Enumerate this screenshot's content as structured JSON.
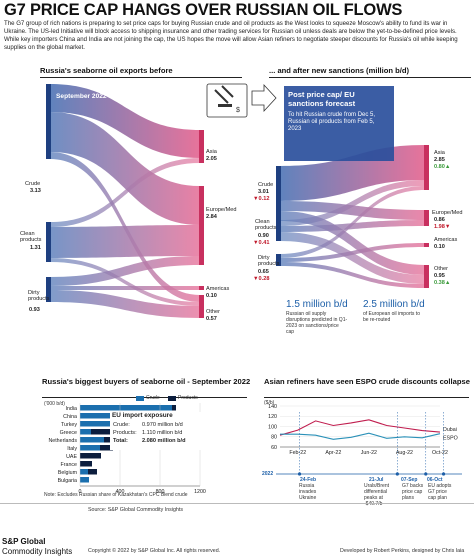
{
  "header": {
    "title": "G7 PRICE CAP HANGS OVER RUSSIAN OIL FLOWS",
    "intro": "The G7 group of rich nations is preparing to set price caps for buying Russian crude and oil products as the West looks to squeeze Moscow's ability to fund its war in Ukraine. The US-led Initiative will block access to shipping insurance and other trading services for Russian oil unless deals are below the yet-to-be-defined price levels. While key importers China and India are not joining the cap, the US hopes the move will allow Asian refiners to negotiate steeper discounts for Russia's oil while keeping supplies on the global market."
  },
  "sankey": {
    "heading_left": "Russia's seaborne oil exports before",
    "heading_right": "... and after new sanctions (million b/d)",
    "before_period": "September 2022",
    "after_title": "Post price cap/ EU sanctions forecast",
    "after_text": "To hit Russian crude from Dec 5, Russian oil products from Feb 5, 2023",
    "before_sources": [
      {
        "label": "Crude",
        "value": "3.13"
      },
      {
        "label": "Clean products",
        "value": "1.31"
      },
      {
        "label": "Dirty products",
        "value": "0.93"
      }
    ],
    "before_destinations": [
      {
        "label": "Asia",
        "value": "2.05"
      },
      {
        "label": "Europe/Med",
        "value": "2.84"
      },
      {
        "label": "Americas",
        "value": "0.10"
      },
      {
        "label": "Other",
        "value": "0.57"
      }
    ],
    "after_sources": [
      {
        "label": "Crude",
        "value": "3.01",
        "change": "0.12"
      },
      {
        "label": "Clean products",
        "value": "0.90",
        "change": "0.41"
      },
      {
        "label": "Dirty products",
        "value": "0.65",
        "change": "0.28"
      }
    ],
    "after_destinations": [
      {
        "label": "Asia",
        "value": "2.85",
        "change": "0.80"
      },
      {
        "label": "Europe/Med",
        "value": "0.86",
        "change": "1.98"
      },
      {
        "label": "Americas",
        "value": "0.10",
        "change": ""
      },
      {
        "label": "Other",
        "value": "0.95",
        "change": "0.38"
      }
    ],
    "stat1_value": "1.5 million b/d",
    "stat1_text": "Russian oil supply disruptions predicted in Q1-2023 on sanctions/price cap",
    "stat2_value": "2.5 million b/d",
    "stat2_text": "of European oil imports to be re-routed",
    "colors": {
      "blue": "#2a5aa8",
      "pink": "#e0457a",
      "green": "#3a9a3a",
      "red": "#c0182a"
    }
  },
  "buyers": {
    "heading": "Russia's biggest buyers of seaborne oil - September 2022",
    "unit": "('000 b/d)",
    "legend": [
      "Crude",
      "Products"
    ],
    "eu_title": "EU import exposure",
    "eu_rows": [
      {
        "label": "Crude:",
        "value": "0.970 million b/d"
      },
      {
        "label": "Products:",
        "value": "1.110 million b/d"
      },
      {
        "label": "Total:",
        "value": "2.080 million b/d"
      }
    ],
    "note": "Note: Excludes Russian share of Kazakhstan's CPC Blend crude"
  },
  "espo": {
    "heading": "Asian refiners have seen ESPO crude discounts collapse",
    "unit": "($/b)",
    "events": [
      {
        "date": "24-Feb",
        "text": "Russia invades Ukraine"
      },
      {
        "date": "21-Jul",
        "text": "Urals/Brent differential peaks at -$40.7/b"
      },
      {
        "date": "07-Sep",
        "text": "G7 backs price cap plans"
      },
      {
        "date": "06-Oct",
        "text": "EU adopts G7 price cap plan"
      }
    ],
    "year": "2022"
  },
  "footer": {
    "source": "Source: S&P Global Commodity Insights",
    "copyright": "Copyright © 2022 by S&P Global Inc. All rights reserved.",
    "credit": "Developed by Robert Perkins, designed by Chris Iaia",
    "logo_line1": "S&P Global",
    "logo_line2": "Commodity Insights"
  },
  "chart_data": [
    {
      "type": "bar",
      "title": "Russia's biggest buyers of seaborne oil - September 2022",
      "ylabel": "('000 b/d)",
      "categories": [
        "India",
        "China",
        "Turkey",
        "Greece",
        "Netherlands",
        "Italy",
        "UAE",
        "France",
        "Belgium",
        "Bulgaria"
      ],
      "series": [
        {
          "name": "Crude",
          "values": [
            920,
            840,
            330,
            110,
            240,
            200,
            0,
            0,
            80,
            90
          ]
        },
        {
          "name": "Products",
          "values": [
            40,
            120,
            430,
            470,
            200,
            130,
            210,
            120,
            90,
            0
          ]
        }
      ],
      "xlim": [
        0,
        1200
      ],
      "xticks": [
        0,
        400,
        800,
        1200
      ],
      "stacked": true,
      "orientation": "horizontal",
      "colors": {
        "Crude": "#1b6fae",
        "Products": "#0c1e3e"
      }
    },
    {
      "type": "line",
      "title": "Asian refiners have seen ESPO crude discounts collapse",
      "ylabel": "($/b)",
      "ylim": [
        60,
        140
      ],
      "yticks": [
        60,
        80,
        100,
        120,
        140
      ],
      "x": [
        "Jan-22",
        "Feb-22",
        "Mar-22",
        "Apr-22",
        "May-22",
        "Jun-22",
        "Jul-22",
        "Aug-22",
        "Sep-22",
        "Oct-22"
      ],
      "xticks": [
        "Feb-22",
        "Apr-22",
        "Jun-22",
        "Aug-22",
        "Oct-22"
      ],
      "series": [
        {
          "name": "Dubai",
          "values": [
            83,
            93,
            111,
            102,
            107,
            113,
            102,
            97,
            92,
            89
          ],
          "color": "#c01d4e"
        },
        {
          "name": "ESPO",
          "values": [
            85,
            85,
            83,
            75,
            79,
            87,
            77,
            80,
            78,
            86
          ],
          "color": "#2b91b8"
        }
      ]
    }
  ]
}
